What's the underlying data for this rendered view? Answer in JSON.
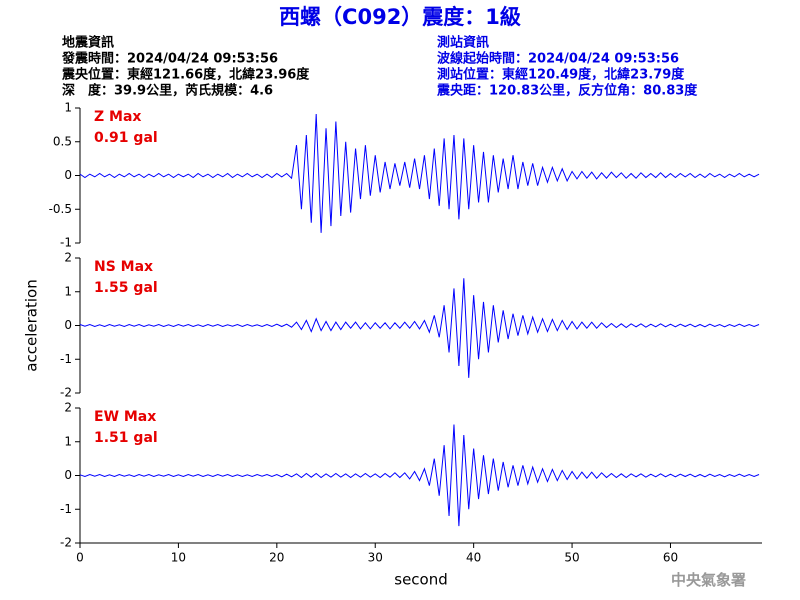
{
  "header": {
    "title": "西螺（C092）震度：1級",
    "left": [
      "地震資訊",
      "發震時間：2024/04/24 09:53:56",
      "震央位置：東經121.66度，北緯23.96度",
      "深　度：39.9公里，芮氏規模：4.6"
    ],
    "right": [
      "測站資訊",
      "波線起始時間：2024/04/24 09:53:56",
      "測站位置：東經120.49度，北緯23.79度",
      "震央距：120.83公里，反方位角：80.83度"
    ]
  },
  "footer": "中央氣象署",
  "chart_data": [
    {
      "type": "line",
      "annotations": [
        "Z Max",
        "0.91 gal"
      ],
      "color": "#0000ff",
      "xlim": [
        0,
        69.3
      ],
      "ylim": [
        -1,
        1
      ],
      "yticks": [
        -1,
        -0.5,
        0,
        0.5,
        1
      ],
      "x": [
        0,
        0.5,
        1,
        1.5,
        2,
        2.5,
        3,
        3.5,
        4,
        4.5,
        5,
        5.5,
        6,
        6.5,
        7,
        7.5,
        8,
        8.5,
        9,
        9.5,
        10,
        10.5,
        11,
        11.5,
        12,
        12.5,
        13,
        13.5,
        14,
        14.5,
        15,
        15.5,
        16,
        16.5,
        17,
        17.5,
        18,
        18.5,
        19,
        19.5,
        20,
        20.5,
        21,
        21.5,
        22,
        22.5,
        23,
        23.5,
        24,
        24.5,
        25,
        25.5,
        26,
        26.5,
        27,
        27.5,
        28,
        28.5,
        29,
        29.5,
        30,
        30.5,
        31,
        31.5,
        32,
        32.5,
        33,
        33.5,
        34,
        34.5,
        35,
        35.5,
        36,
        36.5,
        37,
        37.5,
        38,
        38.5,
        39,
        39.5,
        40,
        40.5,
        41,
        41.5,
        42,
        42.5,
        43,
        43.5,
        44,
        44.5,
        45,
        45.5,
        46,
        46.5,
        47,
        47.5,
        48,
        48.5,
        49,
        49.5,
        50,
        50.5,
        51,
        51.5,
        52,
        52.5,
        53,
        53.5,
        54,
        54.5,
        55,
        55.5,
        56,
        56.5,
        57,
        57.5,
        58,
        58.5,
        59,
        59.5,
        60,
        60.5,
        61,
        61.5,
        62,
        62.5,
        63,
        63.5,
        64,
        64.5,
        65,
        65.5,
        66,
        66.5,
        67,
        67.5,
        68,
        68.5,
        69
      ],
      "values": [
        0.02,
        -0.03,
        0.02,
        -0.02,
        0.03,
        -0.02,
        0.02,
        -0.03,
        0.02,
        -0.02,
        0.03,
        -0.02,
        0.02,
        -0.03,
        0.02,
        -0.02,
        0.03,
        -0.02,
        0.02,
        -0.03,
        0.02,
        -0.02,
        0.02,
        -0.03,
        0.03,
        -0.02,
        0.02,
        -0.03,
        0.02,
        -0.02,
        0.03,
        -0.03,
        0.02,
        -0.02,
        0.03,
        -0.02,
        0.02,
        -0.03,
        0.02,
        -0.03,
        0.03,
        -0.02,
        0.03,
        -0.04,
        0.45,
        -0.5,
        0.6,
        -0.7,
        0.91,
        -0.85,
        0.7,
        -0.75,
        0.8,
        -0.6,
        0.5,
        -0.55,
        0.4,
        -0.35,
        0.45,
        -0.3,
        0.3,
        -0.25,
        0.2,
        -0.2,
        0.18,
        -0.15,
        0.2,
        -0.18,
        0.25,
        -0.2,
        0.3,
        -0.35,
        0.4,
        -0.45,
        0.55,
        -0.5,
        0.6,
        -0.65,
        0.55,
        -0.5,
        0.45,
        -0.4,
        0.35,
        -0.4,
        0.3,
        -0.25,
        0.25,
        -0.2,
        0.3,
        -0.2,
        0.2,
        -0.15,
        0.18,
        -0.15,
        0.12,
        -0.1,
        0.12,
        -0.08,
        0.1,
        -0.08,
        0.06,
        -0.05,
        0.06,
        -0.04,
        0.05,
        -0.05,
        0.04,
        -0.04,
        0.05,
        -0.03,
        0.04,
        -0.04,
        0.03,
        -0.04,
        0.04,
        -0.03,
        0.03,
        -0.03,
        0.04,
        -0.03,
        0.03,
        -0.03,
        0.03,
        -0.02,
        0.03,
        -0.03,
        0.02,
        -0.03,
        0.03,
        -0.02,
        0.02,
        -0.03,
        0.02,
        -0.02,
        0.03,
        -0.02,
        0.02,
        -0.02,
        0.02
      ]
    },
    {
      "type": "line",
      "annotations": [
        "NS Max",
        "1.55 gal"
      ],
      "color": "#0000ff",
      "ylabel": "acceleration",
      "xlim": [
        0,
        69.3
      ],
      "ylim": [
        -2,
        2
      ],
      "yticks": [
        -2,
        -1,
        0,
        1,
        2
      ],
      "x": [
        0,
        0.5,
        1,
        1.5,
        2,
        2.5,
        3,
        3.5,
        4,
        4.5,
        5,
        5.5,
        6,
        6.5,
        7,
        7.5,
        8,
        8.5,
        9,
        9.5,
        10,
        10.5,
        11,
        11.5,
        12,
        12.5,
        13,
        13.5,
        14,
        14.5,
        15,
        15.5,
        16,
        16.5,
        17,
        17.5,
        18,
        18.5,
        19,
        19.5,
        20,
        20.5,
        21,
        21.5,
        22,
        22.5,
        23,
        23.5,
        24,
        24.5,
        25,
        25.5,
        26,
        26.5,
        27,
        27.5,
        28,
        28.5,
        29,
        29.5,
        30,
        30.5,
        31,
        31.5,
        32,
        32.5,
        33,
        33.5,
        34,
        34.5,
        35,
        35.5,
        36,
        36.5,
        37,
        37.5,
        38,
        38.5,
        39,
        39.5,
        40,
        40.5,
        41,
        41.5,
        42,
        42.5,
        43,
        43.5,
        44,
        44.5,
        45,
        45.5,
        46,
        46.5,
        47,
        47.5,
        48,
        48.5,
        49,
        49.5,
        50,
        50.5,
        51,
        51.5,
        52,
        52.5,
        53,
        53.5,
        54,
        54.5,
        55,
        55.5,
        56,
        56.5,
        57,
        57.5,
        58,
        58.5,
        59,
        59.5,
        60,
        60.5,
        61,
        61.5,
        62,
        62.5,
        63,
        63.5,
        64,
        64.5,
        65,
        65.5,
        66,
        66.5,
        67,
        67.5,
        68,
        68.5,
        69
      ],
      "values": [
        0.03,
        -0.02,
        0.03,
        -0.03,
        0.02,
        -0.03,
        0.03,
        -0.02,
        0.02,
        -0.03,
        0.03,
        -0.02,
        0.03,
        -0.03,
        0.02,
        -0.02,
        0.03,
        -0.03,
        0.02,
        -0.03,
        0.03,
        -0.02,
        0.03,
        -0.03,
        0.02,
        -0.03,
        0.03,
        -0.02,
        0.03,
        -0.03,
        0.02,
        -0.02,
        0.03,
        -0.03,
        0.03,
        -0.02,
        0.02,
        -0.03,
        0.03,
        -0.03,
        0.04,
        -0.03,
        0.04,
        -0.05,
        0.1,
        -0.12,
        0.15,
        -0.18,
        0.2,
        -0.15,
        0.12,
        -0.15,
        0.1,
        -0.12,
        0.1,
        -0.08,
        0.1,
        -0.1,
        0.08,
        -0.1,
        0.08,
        -0.08,
        0.08,
        -0.1,
        0.08,
        -0.08,
        0.1,
        -0.08,
        0.12,
        -0.1,
        0.15,
        -0.2,
        0.3,
        -0.35,
        0.6,
        -0.8,
        1.1,
        -1.2,
        1.4,
        -1.55,
        0.9,
        -1.0,
        0.7,
        -0.8,
        0.6,
        -0.5,
        0.45,
        -0.4,
        0.35,
        -0.3,
        0.3,
        -0.25,
        0.25,
        -0.2,
        0.2,
        -0.18,
        0.18,
        -0.15,
        0.15,
        -0.12,
        0.12,
        -0.1,
        0.1,
        -0.08,
        0.1,
        -0.08,
        0.08,
        -0.06,
        0.06,
        -0.06,
        0.05,
        -0.06,
        0.05,
        -0.04,
        0.05,
        -0.05,
        0.04,
        -0.04,
        0.05,
        -0.04,
        0.04,
        -0.04,
        0.04,
        -0.03,
        0.04,
        -0.04,
        0.03,
        -0.04,
        0.04,
        -0.03,
        0.03,
        -0.04,
        0.03,
        -0.03,
        0.04,
        -0.03,
        0.03,
        -0.03,
        0.03
      ]
    },
    {
      "type": "line",
      "annotations": [
        "EW Max",
        "1.51 gal"
      ],
      "color": "#0000ff",
      "xlabel": "second",
      "xlim": [
        0,
        69.3
      ],
      "xticks": [
        0,
        10,
        20,
        30,
        40,
        50,
        60
      ],
      "ylim": [
        -2,
        2
      ],
      "yticks": [
        -2,
        -1,
        0,
        1,
        2
      ],
      "x": [
        0,
        0.5,
        1,
        1.5,
        2,
        2.5,
        3,
        3.5,
        4,
        4.5,
        5,
        5.5,
        6,
        6.5,
        7,
        7.5,
        8,
        8.5,
        9,
        9.5,
        10,
        10.5,
        11,
        11.5,
        12,
        12.5,
        13,
        13.5,
        14,
        14.5,
        15,
        15.5,
        16,
        16.5,
        17,
        17.5,
        18,
        18.5,
        19,
        19.5,
        20,
        20.5,
        21,
        21.5,
        22,
        22.5,
        23,
        23.5,
        24,
        24.5,
        25,
        25.5,
        26,
        26.5,
        27,
        27.5,
        28,
        28.5,
        29,
        29.5,
        30,
        30.5,
        31,
        31.5,
        32,
        32.5,
        33,
        33.5,
        34,
        34.5,
        35,
        35.5,
        36,
        36.5,
        37,
        37.5,
        38,
        38.5,
        39,
        39.5,
        40,
        40.5,
        41,
        41.5,
        42,
        42.5,
        43,
        43.5,
        44,
        44.5,
        45,
        45.5,
        46,
        46.5,
        47,
        47.5,
        48,
        48.5,
        49,
        49.5,
        50,
        50.5,
        51,
        51.5,
        52,
        52.5,
        53,
        53.5,
        54,
        54.5,
        55,
        55.5,
        56,
        56.5,
        57,
        57.5,
        58,
        58.5,
        59,
        59.5,
        60,
        60.5,
        61,
        61.5,
        62,
        62.5,
        63,
        63.5,
        64,
        64.5,
        65,
        65.5,
        66,
        66.5,
        67,
        67.5,
        68,
        68.5,
        69
      ],
      "values": [
        0.02,
        -0.03,
        0.03,
        -0.02,
        0.03,
        -0.03,
        0.02,
        -0.03,
        0.03,
        -0.02,
        0.02,
        -0.03,
        0.03,
        -0.02,
        0.03,
        -0.03,
        0.02,
        -0.02,
        0.03,
        -0.03,
        0.02,
        -0.03,
        0.03,
        -0.02,
        0.03,
        -0.03,
        0.02,
        -0.03,
        0.03,
        -0.02,
        0.03,
        -0.03,
        0.02,
        -0.03,
        0.02,
        -0.03,
        0.03,
        -0.02,
        0.03,
        -0.03,
        0.03,
        -0.04,
        0.04,
        -0.04,
        0.05,
        -0.06,
        0.06,
        -0.05,
        0.06,
        -0.06,
        0.05,
        -0.05,
        0.06,
        -0.05,
        0.05,
        -0.06,
        0.05,
        -0.05,
        0.06,
        -0.05,
        0.05,
        -0.06,
        0.06,
        -0.05,
        0.08,
        -0.06,
        0.08,
        -0.1,
        0.12,
        -0.15,
        0.2,
        -0.3,
        0.5,
        -0.6,
        0.9,
        -1.2,
        1.51,
        -1.5,
        1.2,
        -1.0,
        0.8,
        -0.7,
        0.6,
        -0.55,
        0.5,
        -0.45,
        0.4,
        -0.35,
        0.3,
        -0.3,
        0.3,
        -0.25,
        0.25,
        -0.2,
        0.2,
        -0.18,
        0.18,
        -0.15,
        0.15,
        -0.12,
        0.12,
        -0.1,
        0.1,
        -0.08,
        0.1,
        -0.08,
        0.08,
        -0.06,
        0.06,
        -0.06,
        0.05,
        -0.06,
        0.05,
        -0.04,
        0.05,
        -0.05,
        0.04,
        -0.04,
        0.05,
        -0.04,
        0.04,
        -0.04,
        0.04,
        -0.03,
        0.04,
        -0.04,
        0.03,
        -0.04,
        0.04,
        -0.03,
        0.03,
        -0.04,
        0.03,
        -0.03,
        0.04,
        -0.03,
        0.03,
        -0.03,
        0.03
      ]
    }
  ]
}
